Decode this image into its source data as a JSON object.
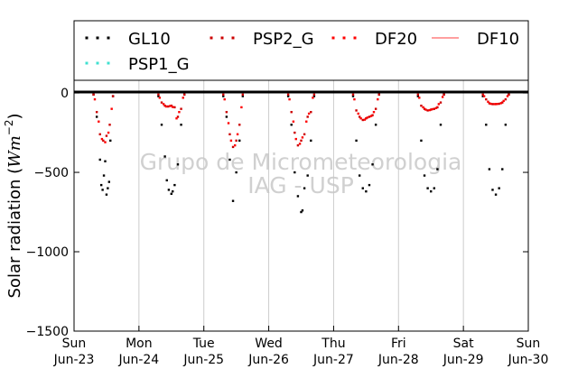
{
  "chart_data": {
    "type": "scatter",
    "ylabel": "Solar radiation ($Wm^{-2}$)",
    "ylabel_text": "Solar radiation (",
    "ylabel_unit_base": "Wm",
    "ylabel_unit_exp": "−2",
    "ylabel_close": ")",
    "ylim": [
      -1500,
      80
    ],
    "yticks": [
      0,
      -500,
      -1000,
      -1500
    ],
    "ytick_labels": [
      "0",
      "−500",
      "−1000",
      "−1500"
    ],
    "xlim": [
      0,
      7
    ],
    "xticks": [
      0,
      1,
      2,
      3,
      4,
      5,
      6,
      7
    ],
    "xtick_labels": [
      [
        "Sun",
        "Jun-23"
      ],
      [
        "Mon",
        "Jun-24"
      ],
      [
        "Tue",
        "Jun-25"
      ],
      [
        "Wed",
        "Jun-26"
      ],
      [
        "Thu",
        "Jun-27"
      ],
      [
        "Fri",
        "Jun-28"
      ],
      [
        "Sat",
        "Jun-29"
      ],
      [
        "Sun",
        "Jun-30"
      ]
    ],
    "grid": "vertical",
    "legend_placement": "top",
    "watermark": [
      "Grupo de Micrometeorologia",
      "IAG - USP"
    ],
    "colors": {
      "GL10": "#000000",
      "PSP2_G": "#cc0000",
      "DF20": "#ff0000",
      "DF10": "#ff6666",
      "PSP1_G": "#40e0d0"
    },
    "series": [
      {
        "name": "GL10",
        "style": "dots",
        "x": [
          0.3,
          0.35,
          0.4,
          0.42,
          0.44,
          0.46,
          0.48,
          0.5,
          0.52,
          0.54,
          0.56,
          0.6,
          1.3,
          1.35,
          1.4,
          1.43,
          1.46,
          1.5,
          1.52,
          1.55,
          1.6,
          1.65,
          1.7,
          2.3,
          2.35,
          2.4,
          2.45,
          2.5,
          2.55,
          2.6,
          3.3,
          3.35,
          3.4,
          3.45,
          3.5,
          3.52,
          3.55,
          3.6,
          3.65,
          3.7,
          4.3,
          4.35,
          4.4,
          4.45,
          4.5,
          4.55,
          4.6,
          4.65,
          4.7,
          5.3,
          5.35,
          5.4,
          5.45,
          5.5,
          5.55,
          5.6,
          5.65,
          5.7,
          6.3,
          6.35,
          6.4,
          6.45,
          6.5,
          6.55,
          6.6,
          6.65,
          6.7
        ],
        "y": [
          -10,
          -150,
          -420,
          -580,
          -610,
          -520,
          -430,
          -640,
          -600,
          -560,
          -300,
          -20,
          -20,
          -200,
          -400,
          -550,
          -610,
          -635,
          -620,
          -580,
          -450,
          -200,
          -10,
          -20,
          -150,
          -420,
          -680,
          -500,
          -300,
          -20,
          -20,
          -200,
          -500,
          -650,
          -750,
          -740,
          -600,
          -520,
          -300,
          -20,
          -20,
          -300,
          -520,
          -600,
          -620,
          -580,
          -450,
          -200,
          -10,
          -20,
          -300,
          -520,
          -600,
          -620,
          -600,
          -480,
          -200,
          -10,
          -20,
          -200,
          -480,
          -610,
          -640,
          -600,
          -480,
          -200,
          -10
        ]
      },
      {
        "name": "PSP2_G",
        "style": "dots",
        "x": [
          0.3,
          0.35,
          0.4,
          0.45,
          0.5,
          0.55,
          0.6,
          1.3,
          1.35,
          1.4,
          1.45,
          1.5,
          1.55,
          1.6,
          1.65,
          1.7,
          2.3,
          2.35,
          2.4,
          2.45,
          2.5,
          2.55,
          2.6,
          3.3,
          3.35,
          3.4,
          3.45,
          3.5,
          3.55,
          3.6,
          3.65,
          3.7,
          4.3,
          4.35,
          4.4,
          4.45,
          4.5,
          4.55,
          4.6,
          4.65,
          4.7,
          5.3,
          5.35,
          5.4,
          5.45,
          5.5,
          5.55,
          5.6,
          5.65,
          5.7,
          6.3,
          6.35,
          6.4,
          6.45,
          6.5,
          6.55,
          6.6,
          6.65,
          6.7
        ],
        "y": [
          -10,
          -120,
          -260,
          -300,
          -270,
          -200,
          -20,
          -10,
          -60,
          -80,
          -85,
          -80,
          -90,
          -150,
          -100,
          -10,
          -10,
          -120,
          -260,
          -340,
          -300,
          -200,
          -10,
          -10,
          -120,
          -250,
          -330,
          -300,
          -260,
          -150,
          -120,
          -10,
          -10,
          -110,
          -150,
          -170,
          -160,
          -150,
          -140,
          -100,
          -10,
          -10,
          -80,
          -100,
          -110,
          -105,
          -100,
          -90,
          -60,
          -10,
          -10,
          -40,
          -65,
          -70,
          -70,
          -68,
          -60,
          -40,
          -10
        ]
      },
      {
        "name": "DF20",
        "style": "dots",
        "x": [
          0.32,
          0.38,
          0.43,
          0.48,
          0.53,
          0.58,
          1.32,
          1.38,
          1.42,
          1.48,
          1.52,
          1.58,
          1.62,
          1.68,
          2.32,
          2.38,
          2.42,
          2.48,
          2.52,
          2.58,
          3.32,
          3.38,
          3.42,
          3.48,
          3.52,
          3.58,
          3.62,
          3.68,
          4.32,
          4.38,
          4.42,
          4.48,
          4.52,
          4.58,
          4.62,
          4.68,
          5.32,
          5.38,
          5.42,
          5.48,
          5.52,
          5.58,
          5.62,
          5.68,
          6.32,
          6.38,
          6.42,
          6.48,
          6.52,
          6.58,
          6.62,
          6.68
        ],
        "y": [
          -40,
          -180,
          -290,
          -310,
          -250,
          -100,
          -30,
          -70,
          -85,
          -82,
          -88,
          -160,
          -120,
          -30,
          -40,
          -190,
          -300,
          -330,
          -260,
          -90,
          -40,
          -180,
          -290,
          -320,
          -280,
          -180,
          -130,
          -30,
          -40,
          -130,
          -160,
          -168,
          -155,
          -145,
          -120,
          -40,
          -30,
          -90,
          -105,
          -108,
          -102,
          -95,
          -70,
          -25,
          -20,
          -55,
          -68,
          -70,
          -69,
          -64,
          -50,
          -20
        ]
      },
      {
        "name": "DF10",
        "style": "line",
        "x": [],
        "y": []
      },
      {
        "name": "PSP1_G",
        "style": "dots",
        "x": [],
        "y": []
      }
    ]
  }
}
